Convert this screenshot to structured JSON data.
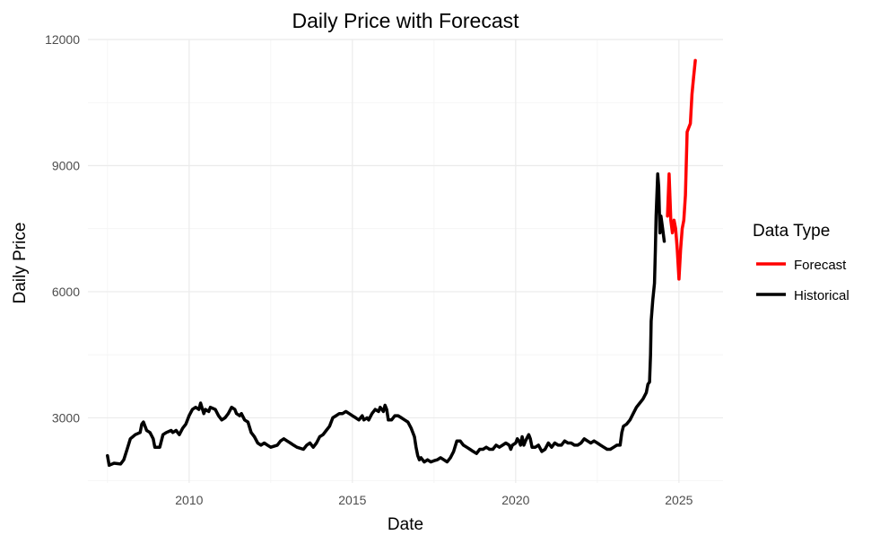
{
  "chart_data": {
    "type": "line",
    "title": "Daily Price with Forecast",
    "xlabel": "Date",
    "ylabel": "Daily Price",
    "xlim": [
      2006.9,
      2026.35
    ],
    "ylim": [
      1450,
      12000
    ],
    "x_ticks": [
      2010,
      2015,
      2020,
      2025
    ],
    "y_ticks": [
      3000,
      6000,
      9000,
      12000
    ],
    "grid": true,
    "legend": {
      "title": "Data Type",
      "placement": "right",
      "entries": [
        {
          "name": "Forecast",
          "color": "#ff0000"
        },
        {
          "name": "Historical",
          "color": "#000000"
        }
      ]
    },
    "series": [
      {
        "name": "Historical",
        "color": "#000000",
        "points": [
          [
            2007.5,
            2100
          ],
          [
            2007.55,
            1870
          ],
          [
            2007.7,
            1920
          ],
          [
            2007.9,
            1900
          ],
          [
            2008.0,
            2000
          ],
          [
            2008.1,
            2250
          ],
          [
            2008.2,
            2500
          ],
          [
            2008.35,
            2600
          ],
          [
            2008.5,
            2650
          ],
          [
            2008.55,
            2850
          ],
          [
            2008.6,
            2900
          ],
          [
            2008.7,
            2700
          ],
          [
            2008.8,
            2650
          ],
          [
            2008.9,
            2500
          ],
          [
            2008.95,
            2300
          ],
          [
            2009.1,
            2300
          ],
          [
            2009.2,
            2600
          ],
          [
            2009.3,
            2650
          ],
          [
            2009.45,
            2700
          ],
          [
            2009.5,
            2650
          ],
          [
            2009.6,
            2700
          ],
          [
            2009.7,
            2600
          ],
          [
            2009.8,
            2750
          ],
          [
            2009.9,
            2850
          ],
          [
            2010.0,
            3050
          ],
          [
            2010.1,
            3200
          ],
          [
            2010.2,
            3250
          ],
          [
            2010.3,
            3200
          ],
          [
            2010.35,
            3350
          ],
          [
            2010.45,
            3100
          ],
          [
            2010.5,
            3200
          ],
          [
            2010.6,
            3150
          ],
          [
            2010.65,
            3250
          ],
          [
            2010.8,
            3200
          ],
          [
            2010.9,
            3050
          ],
          [
            2011.0,
            2950
          ],
          [
            2011.1,
            3000
          ],
          [
            2011.2,
            3100
          ],
          [
            2011.3,
            3250
          ],
          [
            2011.4,
            3200
          ],
          [
            2011.45,
            3100
          ],
          [
            2011.55,
            3050
          ],
          [
            2011.6,
            3100
          ],
          [
            2011.7,
            2950
          ],
          [
            2011.8,
            2900
          ],
          [
            2011.9,
            2650
          ],
          [
            2012.0,
            2550
          ],
          [
            2012.1,
            2400
          ],
          [
            2012.2,
            2350
          ],
          [
            2012.3,
            2400
          ],
          [
            2012.4,
            2350
          ],
          [
            2012.5,
            2300
          ],
          [
            2012.7,
            2350
          ],
          [
            2012.8,
            2450
          ],
          [
            2012.9,
            2500
          ],
          [
            2013.0,
            2450
          ],
          [
            2013.1,
            2400
          ],
          [
            2013.2,
            2350
          ],
          [
            2013.3,
            2300
          ],
          [
            2013.5,
            2250
          ],
          [
            2013.55,
            2300
          ],
          [
            2013.6,
            2350
          ],
          [
            2013.7,
            2400
          ],
          [
            2013.8,
            2300
          ],
          [
            2013.9,
            2400
          ],
          [
            2014.0,
            2550
          ],
          [
            2014.1,
            2600
          ],
          [
            2014.2,
            2700
          ],
          [
            2014.3,
            2800
          ],
          [
            2014.4,
            3000
          ],
          [
            2014.5,
            3050
          ],
          [
            2014.6,
            3100
          ],
          [
            2014.7,
            3100
          ],
          [
            2014.8,
            3150
          ],
          [
            2014.9,
            3100
          ],
          [
            2015.0,
            3050
          ],
          [
            2015.1,
            3000
          ],
          [
            2015.2,
            2950
          ],
          [
            2015.3,
            3050
          ],
          [
            2015.35,
            2950
          ],
          [
            2015.45,
            3000
          ],
          [
            2015.5,
            2950
          ],
          [
            2015.6,
            3100
          ],
          [
            2015.7,
            3200
          ],
          [
            2015.8,
            3150
          ],
          [
            2015.85,
            3250
          ],
          [
            2015.9,
            3200
          ],
          [
            2015.95,
            3150
          ],
          [
            2016.0,
            3300
          ],
          [
            2016.05,
            3200
          ],
          [
            2016.1,
            2950
          ],
          [
            2016.2,
            2950
          ],
          [
            2016.3,
            3050
          ],
          [
            2016.4,
            3050
          ],
          [
            2016.5,
            3000
          ],
          [
            2016.6,
            2950
          ],
          [
            2016.7,
            2900
          ],
          [
            2016.8,
            2750
          ],
          [
            2016.9,
            2550
          ],
          [
            2016.95,
            2300
          ],
          [
            2017.0,
            2100
          ],
          [
            2017.05,
            2000
          ],
          [
            2017.1,
            2050
          ],
          [
            2017.2,
            1950
          ],
          [
            2017.3,
            2000
          ],
          [
            2017.4,
            1950
          ],
          [
            2017.5,
            1980
          ],
          [
            2017.6,
            2000
          ],
          [
            2017.7,
            2050
          ],
          [
            2017.8,
            2000
          ],
          [
            2017.9,
            1950
          ],
          [
            2018.0,
            2050
          ],
          [
            2018.1,
            2200
          ],
          [
            2018.2,
            2450
          ],
          [
            2018.3,
            2450
          ],
          [
            2018.4,
            2350
          ],
          [
            2018.5,
            2300
          ],
          [
            2018.6,
            2250
          ],
          [
            2018.7,
            2200
          ],
          [
            2018.8,
            2150
          ],
          [
            2018.9,
            2250
          ],
          [
            2019.0,
            2250
          ],
          [
            2019.1,
            2300
          ],
          [
            2019.2,
            2250
          ],
          [
            2019.3,
            2250
          ],
          [
            2019.4,
            2350
          ],
          [
            2019.5,
            2300
          ],
          [
            2019.6,
            2350
          ],
          [
            2019.7,
            2400
          ],
          [
            2019.8,
            2350
          ],
          [
            2019.85,
            2250
          ],
          [
            2019.9,
            2350
          ],
          [
            2020.0,
            2400
          ],
          [
            2020.05,
            2500
          ],
          [
            2020.1,
            2450
          ],
          [
            2020.15,
            2350
          ],
          [
            2020.2,
            2550
          ],
          [
            2020.25,
            2350
          ],
          [
            2020.3,
            2450
          ],
          [
            2020.4,
            2600
          ],
          [
            2020.45,
            2500
          ],
          [
            2020.5,
            2300
          ],
          [
            2020.6,
            2300
          ],
          [
            2020.7,
            2350
          ],
          [
            2020.8,
            2200
          ],
          [
            2020.9,
            2250
          ],
          [
            2021.0,
            2400
          ],
          [
            2021.1,
            2300
          ],
          [
            2021.2,
            2400
          ],
          [
            2021.3,
            2350
          ],
          [
            2021.4,
            2350
          ],
          [
            2021.5,
            2450
          ],
          [
            2021.6,
            2400
          ],
          [
            2021.7,
            2400
          ],
          [
            2021.8,
            2350
          ],
          [
            2021.9,
            2350
          ],
          [
            2022.0,
            2400
          ],
          [
            2022.1,
            2500
          ],
          [
            2022.2,
            2450
          ],
          [
            2022.3,
            2400
          ],
          [
            2022.4,
            2450
          ],
          [
            2022.5,
            2400
          ],
          [
            2022.6,
            2350
          ],
          [
            2022.7,
            2300
          ],
          [
            2022.8,
            2250
          ],
          [
            2022.9,
            2250
          ],
          [
            2023.0,
            2300
          ],
          [
            2023.1,
            2350
          ],
          [
            2023.2,
            2350
          ],
          [
            2023.25,
            2650
          ],
          [
            2023.3,
            2800
          ],
          [
            2023.4,
            2850
          ],
          [
            2023.5,
            2950
          ],
          [
            2023.6,
            3100
          ],
          [
            2023.7,
            3250
          ],
          [
            2023.8,
            3350
          ],
          [
            2023.9,
            3450
          ],
          [
            2024.0,
            3600
          ],
          [
            2024.05,
            3800
          ],
          [
            2024.1,
            3850
          ],
          [
            2024.13,
            4500
          ],
          [
            2024.15,
            5300
          ],
          [
            2024.2,
            5800
          ],
          [
            2024.25,
            6200
          ],
          [
            2024.28,
            7000
          ],
          [
            2024.3,
            7800
          ],
          [
            2024.35,
            8800
          ],
          [
            2024.38,
            8500
          ],
          [
            2024.42,
            7400
          ],
          [
            2024.45,
            7800
          ],
          [
            2024.5,
            7500
          ],
          [
            2024.55,
            7200
          ]
        ]
      },
      {
        "name": "Forecast",
        "color": "#ff0000",
        "points": [
          [
            2024.65,
            7800
          ],
          [
            2024.7,
            8800
          ],
          [
            2024.75,
            7700
          ],
          [
            2024.8,
            7400
          ],
          [
            2024.85,
            7700
          ],
          [
            2024.9,
            7500
          ],
          [
            2024.95,
            7000
          ],
          [
            2025.0,
            6300
          ],
          [
            2025.05,
            7000
          ],
          [
            2025.1,
            7500
          ],
          [
            2025.15,
            7700
          ],
          [
            2025.2,
            8300
          ],
          [
            2025.25,
            9800
          ],
          [
            2025.3,
            9900
          ],
          [
            2025.35,
            10000
          ],
          [
            2025.4,
            10700
          ],
          [
            2025.45,
            11100
          ],
          [
            2025.5,
            11500
          ]
        ]
      }
    ]
  }
}
